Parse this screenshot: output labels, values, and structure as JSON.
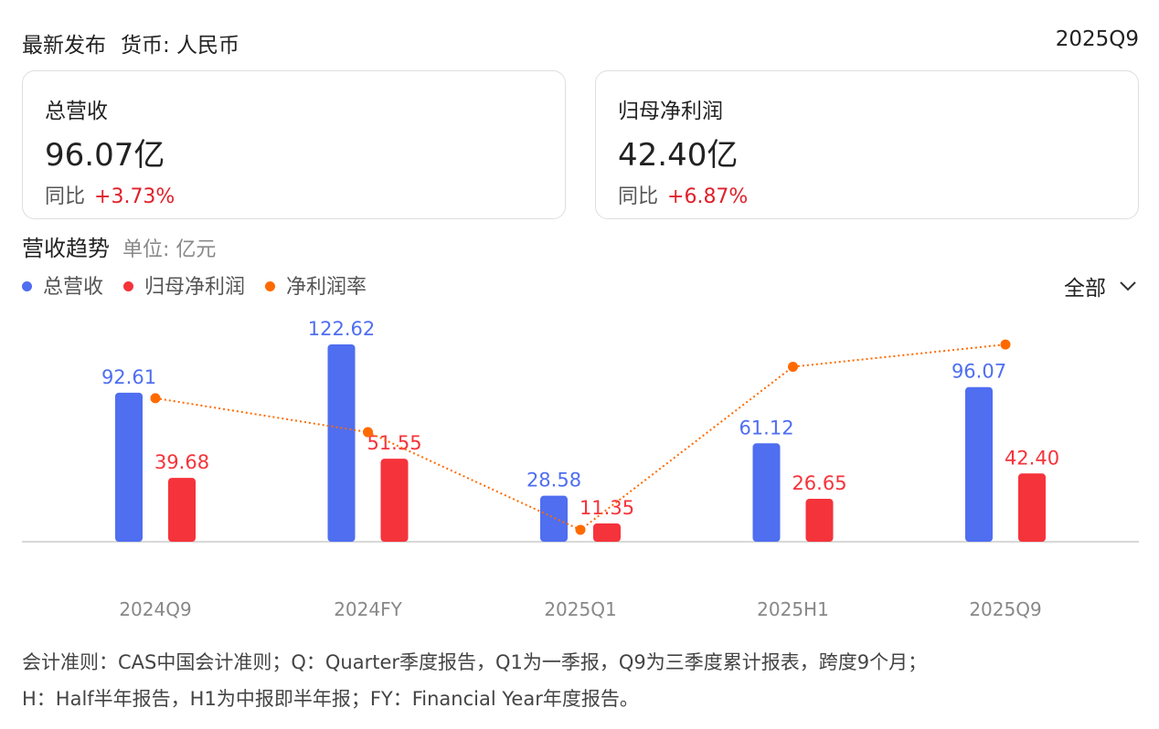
{
  "header": {
    "title": "最新发布",
    "currency": "货币: 人民币",
    "period": "2025Q9"
  },
  "cards": [
    {
      "title": "总营收",
      "value": "96.07亿",
      "yoy_label": "同比",
      "yoy": "+3.73%"
    },
    {
      "title": "归母净利润",
      "value": "42.40亿",
      "yoy_label": "同比",
      "yoy": "+6.87%"
    }
  ],
  "section": {
    "title": "营收趋势",
    "unit": "单位: 亿元"
  },
  "dropdown": {
    "label": "全部"
  },
  "colors": {
    "revenue": "#4f6ef0",
    "profit": "#f5333b",
    "margin": "#ff6a00"
  },
  "chart_data": {
    "type": "bar",
    "categories": [
      "2024Q9",
      "2024FY",
      "2025Q1",
      "2025H1",
      "2025Q9"
    ],
    "series": [
      {
        "name": "总营收",
        "type": "bar",
        "values": [
          92.61,
          122.62,
          28.58,
          61.12,
          96.07
        ],
        "labels": [
          "92.61",
          "122.62",
          "28.58",
          "61.12",
          "96.07"
        ]
      },
      {
        "name": "归母净利润",
        "type": "bar",
        "values": [
          39.68,
          51.55,
          11.35,
          26.65,
          42.4
        ],
        "labels": [
          "39.68",
          "51.55",
          "11.35",
          "26.65",
          "42.40"
        ]
      },
      {
        "name": "净利润率",
        "type": "line",
        "unit": "%",
        "values": [
          42.85,
          42.04,
          39.71,
          43.6,
          44.13
        ]
      }
    ],
    "legend": "top-left"
  },
  "footnote": [
    "会计准则：CAS中国会计准则；Q：Quarter季度报告，Q1为一季报，Q9为三季度累计报表，跨度9个月；",
    "H：Half半年报告，H1为中报即半年报；FY：Financial Year年度报告。"
  ]
}
